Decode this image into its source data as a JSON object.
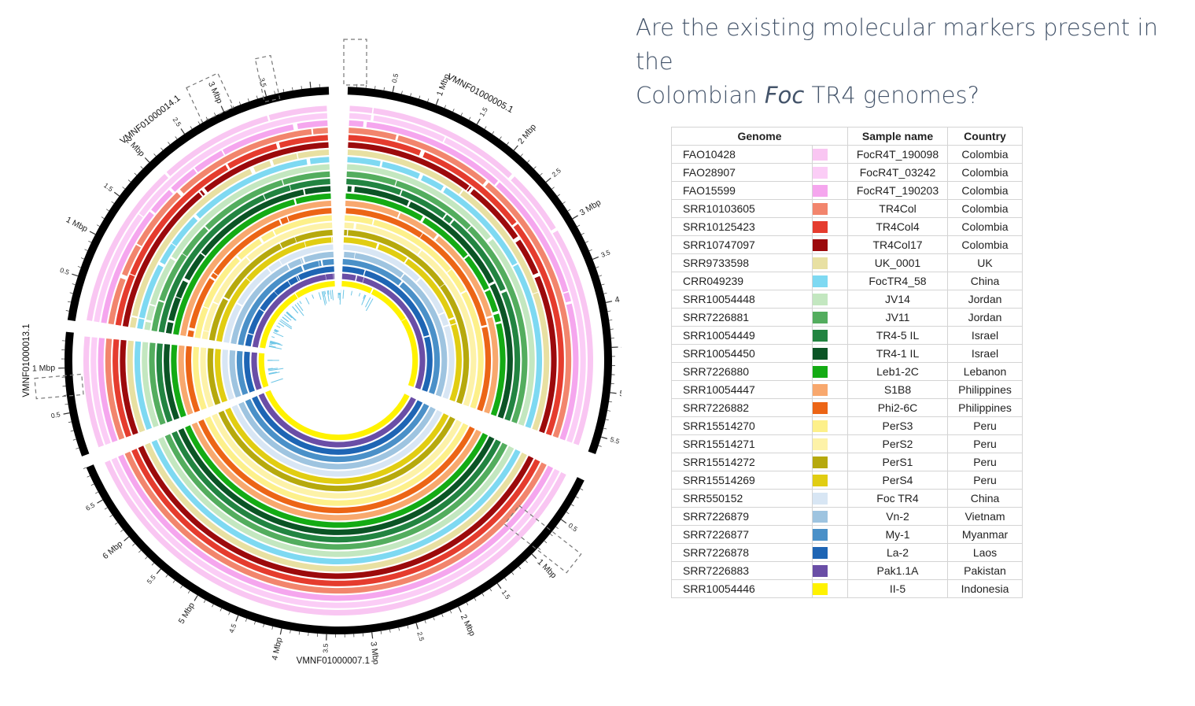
{
  "heading": {
    "line1": "Are the existing molecular markers present in the",
    "line2_pre": "Colombian ",
    "line2_italic": "Foc",
    "line2_post": " TR4 genomes?"
  },
  "table": {
    "headers": [
      "Genome",
      "Sample name",
      "Country"
    ],
    "rows": [
      {
        "genome": "FAO10428",
        "sample": "FocR4T_190098",
        "country": "Colombia",
        "color": "#f9c6f2"
      },
      {
        "genome": "FAO28907",
        "sample": "FocR4T_03242",
        "country": "Colombia",
        "color": "#fbcdf6"
      },
      {
        "genome": "FAO15599",
        "sample": "FocR4T_190203",
        "country": "Colombia",
        "color": "#f5a6ee"
      },
      {
        "genome": "SRR10103605",
        "sample": "TR4Col",
        "country": "Colombia",
        "color": "#f2856d"
      },
      {
        "genome": "SRR10125423",
        "sample": "TR4Col4",
        "country": "Colombia",
        "color": "#e53c2e"
      },
      {
        "genome": "SRR10747097",
        "sample": "TR4Col17",
        "country": "Colombia",
        "color": "#9c0a0c"
      },
      {
        "genome": "SRR9733598",
        "sample": "UK_0001",
        "country": "UK",
        "color": "#e8e0a2"
      },
      {
        "genome": "CRR049239",
        "sample": "FocTR4_58",
        "country": "China",
        "color": "#7ed9f2"
      },
      {
        "genome": "SRR10054448",
        "sample": "JV14",
        "country": "Jordan",
        "color": "#c3e7c0"
      },
      {
        "genome": "SRR7226881",
        "sample": "JV11",
        "country": "Jordan",
        "color": "#53ad5e"
      },
      {
        "genome": "SRR10054449",
        "sample": "TR4-5 IL",
        "country": "Israel",
        "color": "#228441"
      },
      {
        "genome": "SRR10054450",
        "sample": "TR4-1 IL",
        "country": "Israel",
        "color": "#0b5425"
      },
      {
        "genome": "SRR7226880",
        "sample": "Leb1-2C",
        "country": "Lebanon",
        "color": "#14ab14"
      },
      {
        "genome": "SRR10054447",
        "sample": "S1B8",
        "country": "Philippines",
        "color": "#f8a86e"
      },
      {
        "genome": "SRR7226882",
        "sample": "Phi2-6C",
        "country": "Philippines",
        "color": "#ec6516"
      },
      {
        "genome": "SRR15514270",
        "sample": "PerS3",
        "country": "Peru",
        "color": "#fdf08a"
      },
      {
        "genome": "SRR15514271",
        "sample": "PerS2",
        "country": "Peru",
        "color": "#fdf2a8"
      },
      {
        "genome": "SRR15514272",
        "sample": "PerS1",
        "country": "Peru",
        "color": "#b6a90d"
      },
      {
        "genome": "SRR15514269",
        "sample": "PerS4",
        "country": "Peru",
        "color": "#e1cd12"
      },
      {
        "genome": "SRR550152",
        "sample": "Foc TR4",
        "country": "China",
        "color": "#d8e6f4"
      },
      {
        "genome": "SRR7226879",
        "sample": "Vn-2",
        "country": "Vietnam",
        "color": "#9ec4e0"
      },
      {
        "genome": "SRR7226877",
        "sample": "My-1",
        "country": "Myanmar",
        "color": "#4a90c8"
      },
      {
        "genome": "SRR7226878",
        "sample": "La-2",
        "country": "Laos",
        "color": "#1e65b4"
      },
      {
        "genome": "SRR7226883",
        "sample": "Pak1.1A",
        "country": "Pakistan",
        "color": "#6a4ea6"
      },
      {
        "genome": "SRR10054446",
        "sample": "II-5",
        "country": "Indonesia",
        "color": "#fff200"
      }
    ]
  },
  "circos": {
    "contigs": [
      {
        "name": "VMNF01000005.1",
        "start_deg": 2,
        "end_deg": 110,
        "length_mbp": 5.7
      },
      {
        "name": "VMNF01000007.1",
        "start_deg": 116,
        "end_deg": 247,
        "length_mbp": 6.9
      },
      {
        "name": "VMNF01000013.1",
        "start_deg": 249.5,
        "end_deg": 276,
        "length_mbp": 1.4
      },
      {
        "name": "VMNF01000014.1",
        "start_deg": 278.5,
        "end_deg": 358,
        "length_mbp": 4.2
      }
    ],
    "tick_labels": [
      "0.5",
      "1 Mbp",
      "1.5",
      "2 Mbp",
      "2.5",
      "3 Mbp",
      "3.5",
      "4 Mbp",
      "4.5",
      "5 Mbp",
      "5.5",
      "0.5",
      "1 Mbp",
      "1.5",
      "2 Mbp",
      "2.5",
      "3 Mbp",
      "3.5",
      "4 Mbp",
      "4.5",
      "5 Mbp",
      "5.5",
      "6 Mbp",
      "6.5",
      "0.5",
      "1 Mbp",
      "0.5",
      "1 Mbp",
      "1.5",
      "2 Mbp",
      "2.5",
      "3 Mbp",
      "3.5"
    ]
  }
}
